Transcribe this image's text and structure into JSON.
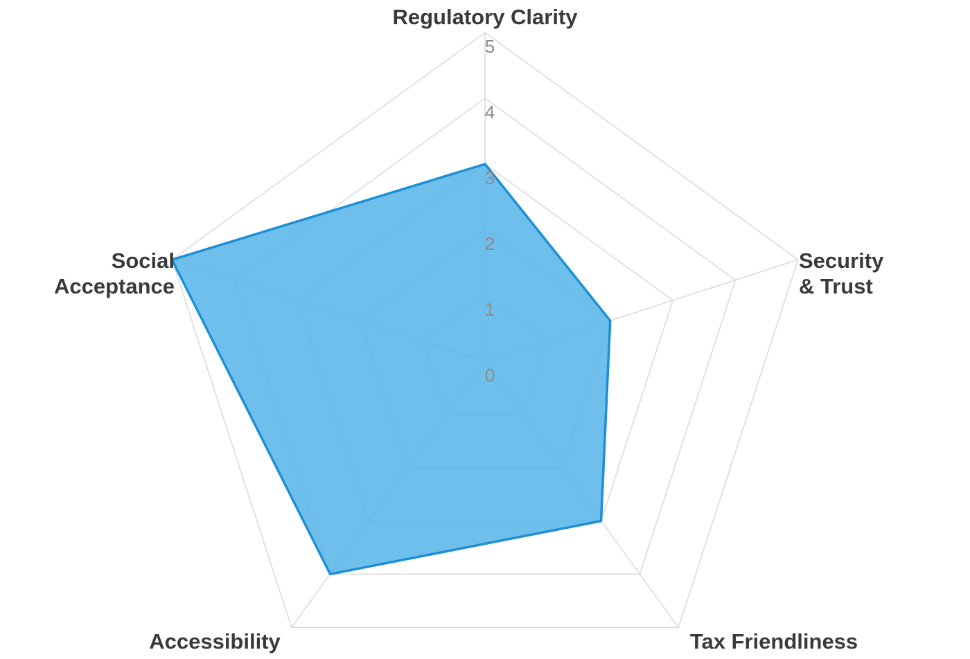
{
  "chart_data": {
    "type": "radar",
    "categories": [
      "Regulatory Clarity",
      "Security & Trust",
      "Tax Friendliness",
      "Accessibility",
      "Social Acceptance"
    ],
    "values": [
      3,
      2,
      3,
      4,
      5
    ],
    "scale": {
      "min": 0,
      "max": 5,
      "step": 1
    },
    "tick_labels": [
      "0",
      "1",
      "2",
      "3",
      "4",
      "5"
    ],
    "axis_display_labels": [
      "Regulatory Clarity",
      "Security\n& Trust",
      "Tax Friendliness",
      "Accessibility",
      "Social\nAcceptance"
    ],
    "grid": "pentagon-rings",
    "legend": "none",
    "colors": {
      "fill": "#56b4e9",
      "fill_opacity": 0.85,
      "stroke": "#1d8fd6",
      "grid": "#d9d9d9",
      "tick_text": "#8c8c8c",
      "label_text": "#3a3a3a",
      "background": "#ffffff"
    }
  }
}
